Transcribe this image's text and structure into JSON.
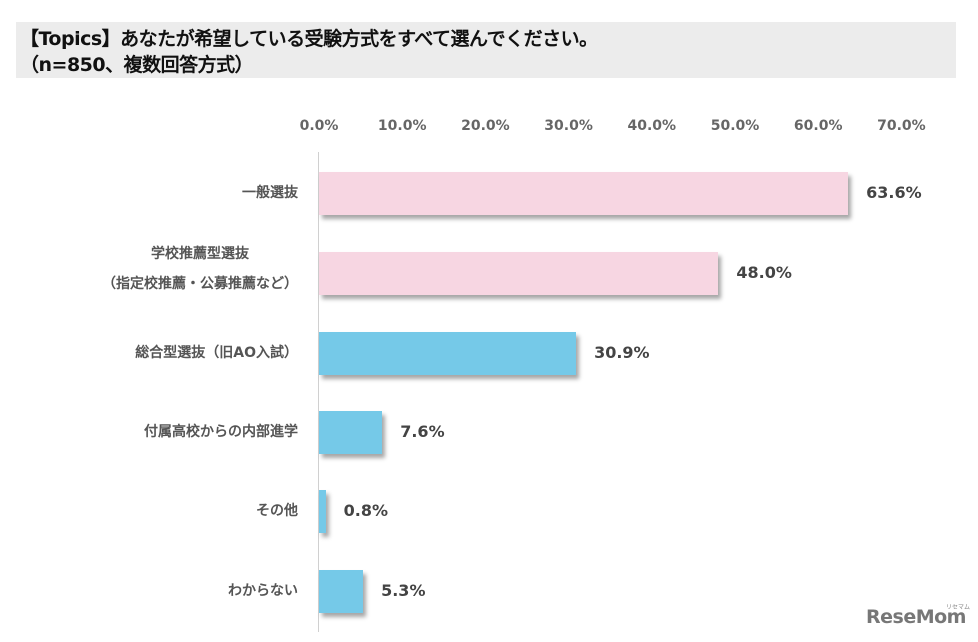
{
  "title": {
    "line1": "【Topics】あなたが希望している受験方式をすべて選んでください。",
    "line2": "（n=850、複数回答方式）"
  },
  "axis": {
    "ticks": [
      "0.0%",
      "10.0%",
      "20.0%",
      "30.0%",
      "40.0%",
      "50.0%",
      "60.0%",
      "70.0%"
    ]
  },
  "bars": [
    {
      "label1": "一般選抜",
      "label2": "",
      "value": 63.6,
      "value_label": "63.6%",
      "color": "#f7d6e2"
    },
    {
      "label1": "学校推薦型選抜",
      "label2": "（指定校推薦・公募推薦など）",
      "value": 48.0,
      "value_label": "48.0%",
      "color": "#f7d6e2"
    },
    {
      "label1": "総合型選抜（旧AO入試）",
      "label2": "",
      "value": 30.9,
      "value_label": "30.9%",
      "color": "#75c9e8"
    },
    {
      "label1": "付属高校からの内部進学",
      "label2": "",
      "value": 7.6,
      "value_label": "7.6%",
      "color": "#75c9e8"
    },
    {
      "label1": "その他",
      "label2": "",
      "value": 0.8,
      "value_label": "0.8%",
      "color": "#75c9e8"
    },
    {
      "label1": "わからない",
      "label2": "",
      "value": 5.3,
      "value_label": "5.3%",
      "color": "#75c9e8"
    }
  ],
  "logo": {
    "text": "ReseMom",
    "sub": "リセマム"
  },
  "chart_data": {
    "type": "bar",
    "orientation": "horizontal",
    "title": "【Topics】あなたが希望している受験方式をすべて選んでください。（n=850、複数回答方式）",
    "categories": [
      "一般選抜",
      "学校推薦型選抜（指定校推薦・公募推薦など）",
      "総合型選抜（旧AO入試）",
      "付属高校からの内部進学",
      "その他",
      "わからない"
    ],
    "values": [
      63.6,
      48.0,
      30.9,
      7.6,
      0.8,
      5.3
    ],
    "xlabel": "",
    "ylabel": "",
    "xlim": [
      0,
      70
    ],
    "tick_labels": [
      "0.0%",
      "10.0%",
      "20.0%",
      "30.0%",
      "40.0%",
      "50.0%",
      "60.0%",
      "70.0%"
    ],
    "grid": false,
    "legend": null,
    "colors": [
      "#f7d6e2",
      "#f7d6e2",
      "#75c9e8",
      "#75c9e8",
      "#75c9e8",
      "#75c9e8"
    ]
  }
}
